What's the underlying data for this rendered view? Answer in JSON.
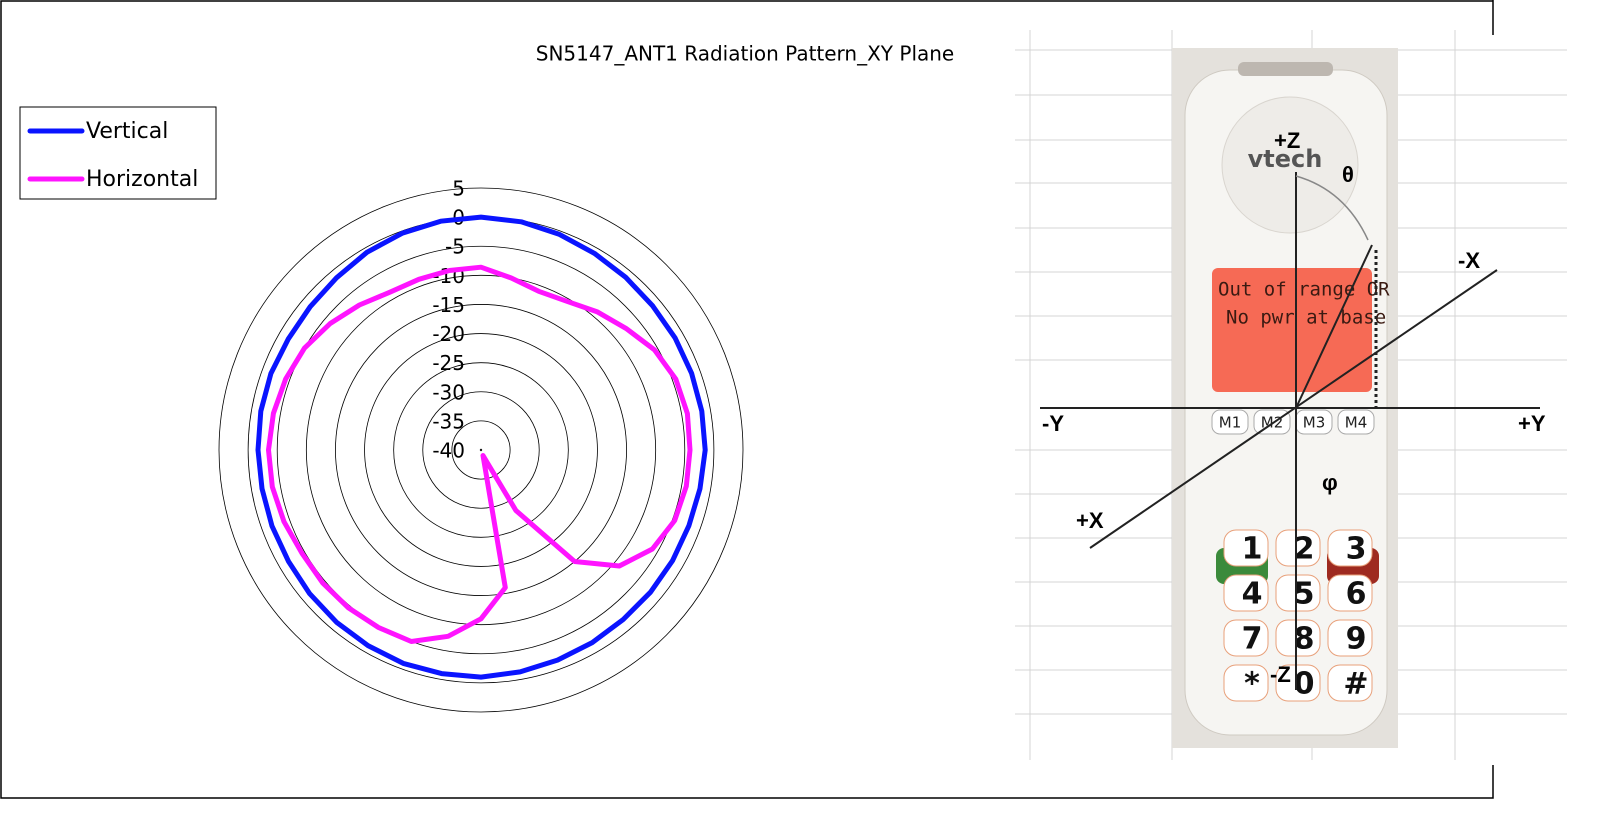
{
  "chart_data": {
    "type": "polar",
    "title": "SN5147_ANT1 Radiation Pattern_XY Plane",
    "x": [
      0,
      10,
      20,
      30,
      40,
      50,
      60,
      70,
      80,
      90,
      100,
      110,
      120,
      130,
      140,
      150,
      160,
      170,
      180,
      190,
      200,
      210,
      220,
      230,
      240,
      250,
      260,
      270,
      280,
      290,
      300,
      310,
      320,
      330,
      340,
      350
    ],
    "series": [
      {
        "name": "Vertical",
        "color": "#0a14ff",
        "values": [
          0,
          -0.2,
          -0.6,
          -1,
          -1.3,
          -1.5,
          -1.5,
          -1.5,
          -1.5,
          -1.5,
          -1.8,
          -2,
          -2,
          -2,
          -2,
          -1.8,
          -1.6,
          -1.3,
          -1,
          -1,
          -1,
          -1.2,
          -1.4,
          -1.6,
          -1.8,
          -1.8,
          -1.8,
          -1.7,
          -1.6,
          -1.6,
          -1.8,
          -1.7,
          -1.4,
          -0.8,
          -0.4,
          -0.1
        ]
      },
      {
        "name": "Horizontal",
        "color": "#ff14ff",
        "values": [
          -8.6,
          -10,
          -11,
          -10.5,
          -9,
          -7.5,
          -5.6,
          -4.4,
          -4,
          -4.1,
          -4.2,
          -4.6,
          -6,
          -9,
          -15,
          -28,
          -39,
          -16,
          -11,
          -7.5,
          -5,
          -4.8,
          -4.6,
          -4.5,
          -4.5,
          -4,
          -3.6,
          -3.5,
          -3.8,
          -4.3,
          -5,
          -6.2,
          -7.5,
          -8.7,
          -8.8,
          -8.7
        ]
      }
    ],
    "ylim": [
      -40,
      5
    ],
    "yticks": [
      5,
      0,
      -5,
      -10,
      -15,
      -20,
      -25,
      -30,
      -35,
      -40
    ],
    "grid": true,
    "legend": "upper-left"
  },
  "diagram": {
    "brand": "vtech",
    "screen": [
      "Out of range OR",
      "No pwr at base"
    ],
    "axes": {
      "plus_z": "+Z",
      "minus_z": "-Z",
      "minus_y": "-Y",
      "plus_y": "+Y",
      "minus_x": "-X",
      "plus_x": "+X",
      "theta": "θ",
      "phi": "φ"
    },
    "memory_keys": [
      "M1",
      "M2",
      "M3",
      "M4"
    ],
    "keys": [
      "1",
      "2",
      "3",
      "4",
      "5",
      "6",
      "7",
      "8",
      "9",
      "*",
      "0",
      "#"
    ]
  }
}
